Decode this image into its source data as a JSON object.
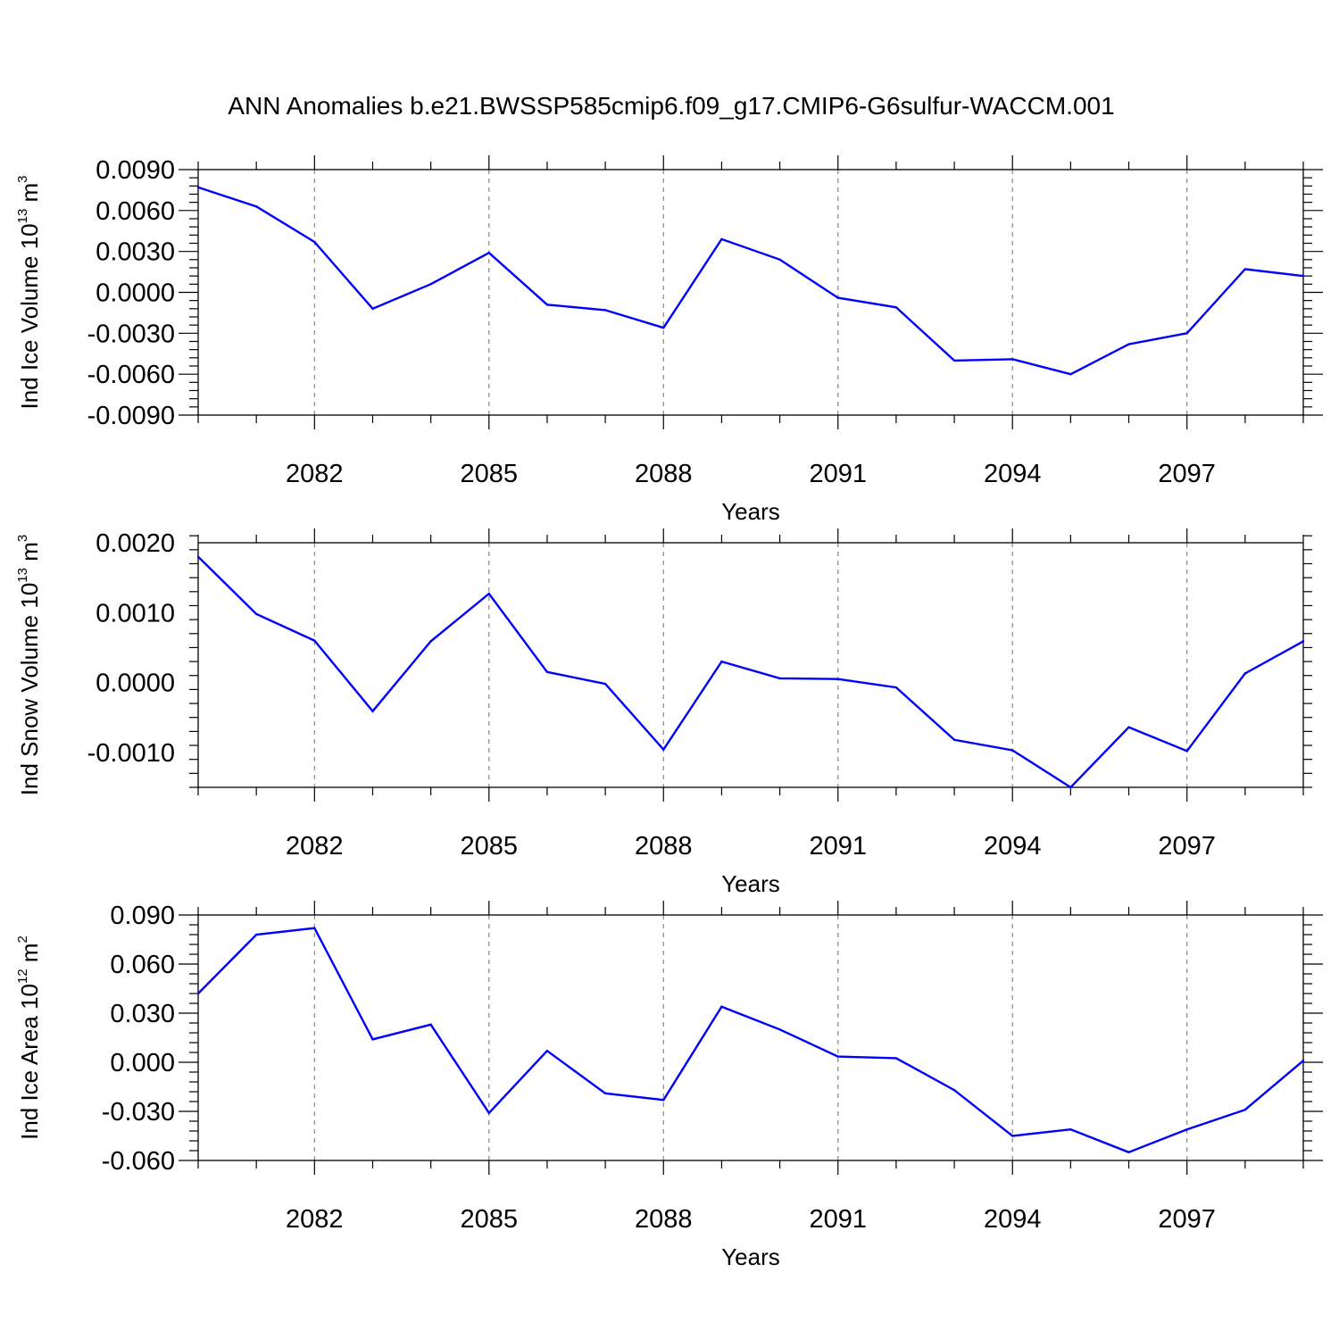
{
  "title": "ANN Anomalies b.e21.BWSSP585cmip6.f09_g17.CMIP6-G6sulfur-WACCM.001",
  "colors": {
    "line": "#0000ff",
    "axis": "#000000",
    "grid": "#888888"
  },
  "chart_data": [
    {
      "type": "line",
      "xlabel": "Years",
      "ylabel": {
        "main": "Ind Ice Volume 10",
        "sup": "13",
        "unit": " m",
        "unit_sup": "3"
      },
      "x": [
        2080,
        2081,
        2082,
        2083,
        2084,
        2085,
        2086,
        2087,
        2088,
        2089,
        2090,
        2091,
        2092,
        2093,
        2094,
        2095,
        2096,
        2097,
        2098,
        2099
      ],
      "values": [
        0.0077,
        0.0063,
        0.0037,
        -0.0012,
        0.0006,
        0.0029,
        -0.0009,
        -0.0013,
        -0.0026,
        0.0039,
        0.0024,
        -0.0004,
        -0.0011,
        -0.005,
        -0.0049,
        -0.006,
        -0.0038,
        -0.003,
        0.0017,
        0.0012
      ],
      "xlim": [
        2080,
        2099
      ],
      "ylim": [
        -0.009,
        0.009
      ],
      "yticks": [
        -0.009,
        -0.006,
        -0.003,
        0.0,
        0.003,
        0.006,
        0.009
      ],
      "ytick_labels": [
        "-0.0090",
        "-0.0060",
        "-0.0030",
        "0.0000",
        "0.0030",
        "0.0060",
        "0.0090"
      ],
      "xticks": [
        2082,
        2085,
        2088,
        2091,
        2094,
        2097
      ],
      "xtick_labels": [
        "2082",
        "2085",
        "2088",
        "2091",
        "2094",
        "2097"
      ],
      "grid": "vertical dashed at major x ticks"
    },
    {
      "type": "line",
      "xlabel": "Years",
      "ylabel": {
        "main": "Ind Snow Volume 10",
        "sup": "13",
        "unit": " m",
        "unit_sup": "3"
      },
      "x": [
        2080,
        2081,
        2082,
        2083,
        2084,
        2085,
        2086,
        2087,
        2088,
        2089,
        2090,
        2091,
        2092,
        2093,
        2094,
        2095,
        2096,
        2097,
        2098,
        2099
      ],
      "values": [
        0.0018,
        0.00098,
        0.0006,
        -0.00041,
        0.00059,
        0.00127,
        0.00015,
        -2e-05,
        -0.00096,
        0.0003,
        6e-05,
        5e-05,
        -7e-05,
        -0.00082,
        -0.00097,
        -0.0015,
        -0.00064,
        -0.00098,
        0.00013,
        0.00059
      ],
      "xlim": [
        2080,
        2099
      ],
      "ylim": [
        -0.0015,
        0.002
      ],
      "yticks": [
        -0.001,
        0.0,
        0.001,
        0.002
      ],
      "ytick_labels": [
        "-0.0010",
        "0.0000",
        "0.0010",
        "0.0020"
      ],
      "xticks": [
        2082,
        2085,
        2088,
        2091,
        2094,
        2097
      ],
      "xtick_labels": [
        "2082",
        "2085",
        "2088",
        "2091",
        "2094",
        "2097"
      ],
      "grid": "vertical dashed at major x ticks"
    },
    {
      "type": "line",
      "xlabel": "Years",
      "ylabel": {
        "main": "Ind Ice Area 10",
        "sup": "12",
        "unit": " m",
        "unit_sup": "2"
      },
      "x": [
        2080,
        2081,
        2082,
        2083,
        2084,
        2085,
        2086,
        2087,
        2088,
        2089,
        2090,
        2091,
        2092,
        2093,
        2094,
        2095,
        2096,
        2097,
        2098,
        2099
      ],
      "values": [
        0.042,
        0.078,
        0.082,
        0.014,
        0.023,
        -0.031,
        0.007,
        -0.019,
        -0.023,
        0.034,
        0.02,
        0.0035,
        0.0025,
        -0.017,
        -0.045,
        -0.041,
        -0.055,
        -0.041,
        -0.029,
        0.001
      ],
      "xlim": [
        2080,
        2099
      ],
      "ylim": [
        -0.06,
        0.09
      ],
      "yticks": [
        -0.06,
        -0.03,
        0.0,
        0.03,
        0.06,
        0.09
      ],
      "ytick_labels": [
        "-0.060",
        "-0.030",
        "0.000",
        "0.030",
        "0.060",
        "0.090"
      ],
      "xticks": [
        2082,
        2085,
        2088,
        2091,
        2094,
        2097
      ],
      "xtick_labels": [
        "2082",
        "2085",
        "2088",
        "2091",
        "2094",
        "2097"
      ],
      "grid": "vertical dashed at major x ticks"
    }
  ]
}
